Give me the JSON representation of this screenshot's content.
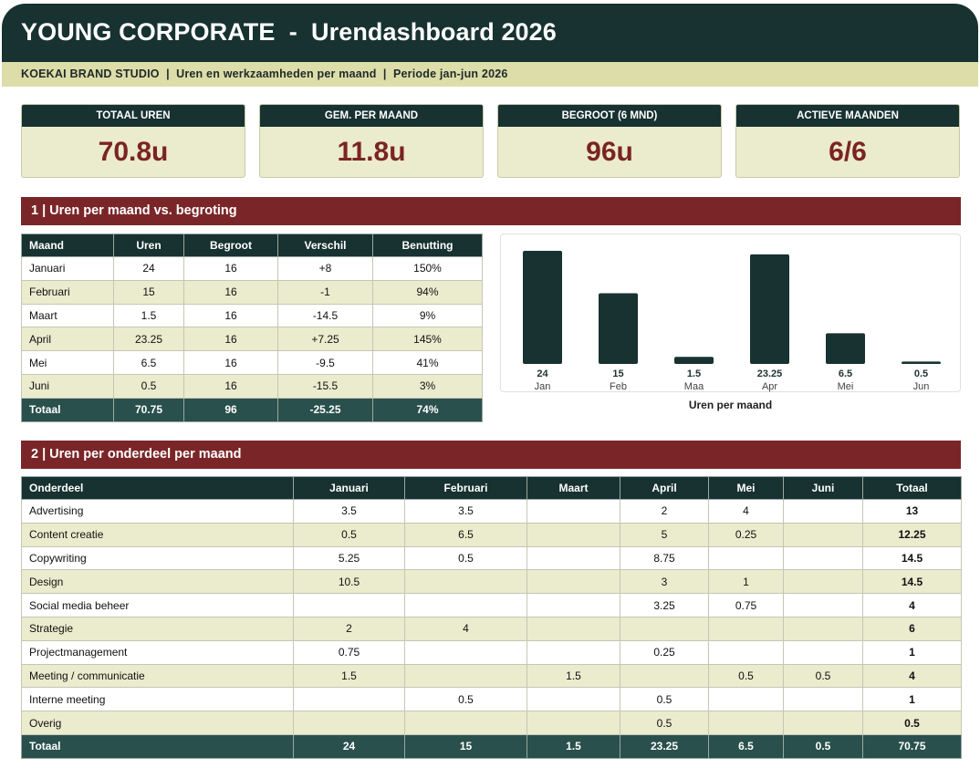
{
  "header": {
    "title": "YOUNG CORPORATE  -  Urendashboard 2026",
    "subtitle": "KOEKAI BRAND STUDIO  |  Uren en werkzaamheden per maand  |  Periode jan-jun 2026"
  },
  "kpis": [
    {
      "label": "TOTAAL UREN",
      "value": "70.8u"
    },
    {
      "label": "GEM. PER MAAND",
      "value": "11.8u"
    },
    {
      "label": "BEGROOT (6 MND)",
      "value": "96u"
    },
    {
      "label": "ACTIEVE MAANDEN",
      "value": "6/6"
    }
  ],
  "section1": {
    "title": "1 | Uren per maand vs. begroting",
    "columns": [
      "Maand",
      "Uren",
      "Begroot",
      "Verschil",
      "Benutting"
    ],
    "rows": [
      [
        "Januari",
        "24",
        "16",
        "+8",
        "150%"
      ],
      [
        "Februari",
        "15",
        "16",
        "-1",
        "94%"
      ],
      [
        "Maart",
        "1.5",
        "16",
        "-14.5",
        "9%"
      ],
      [
        "April",
        "23.25",
        "16",
        "+7.25",
        "145%"
      ],
      [
        "Mei",
        "6.5",
        "16",
        "-9.5",
        "41%"
      ],
      [
        "Juni",
        "0.5",
        "16",
        "-15.5",
        "3%"
      ]
    ],
    "total": [
      "Totaal",
      "70.75",
      "96",
      "-25.25",
      "74%"
    ]
  },
  "chart_data": {
    "type": "bar",
    "categories": [
      "Jan",
      "Feb",
      "Maa",
      "Apr",
      "Mei",
      "Jun"
    ],
    "values": [
      24,
      15,
      1.5,
      23.25,
      6.5,
      0.5
    ],
    "value_labels": [
      "24",
      "15",
      "1.5",
      "23.25",
      "6.5",
      "0.5"
    ],
    "title": "",
    "xlabel": "Uren per maand",
    "ylabel": "",
    "ylim": [
      0,
      24
    ],
    "grid": false,
    "bar_color": "#173230"
  },
  "section2": {
    "title": "2 | Uren per onderdeel per maand",
    "columns": [
      "Onderdeel",
      "Januari",
      "Februari",
      "Maart",
      "April",
      "Mei",
      "Juni",
      "Totaal"
    ],
    "rows": [
      [
        "Advertising",
        "3.5",
        "3.5",
        "",
        "2",
        "4",
        "",
        "13"
      ],
      [
        "Content creatie",
        "0.5",
        "6.5",
        "",
        "5",
        "0.25",
        "",
        "12.25"
      ],
      [
        "Copywriting",
        "5.25",
        "0.5",
        "",
        "8.75",
        "",
        "",
        "14.5"
      ],
      [
        "Design",
        "10.5",
        "",
        "",
        "3",
        "1",
        "",
        "14.5"
      ],
      [
        "Social media beheer",
        "",
        "",
        "",
        "3.25",
        "0.75",
        "",
        "4"
      ],
      [
        "Strategie",
        "2",
        "4",
        "",
        "",
        "",
        "",
        "6"
      ],
      [
        "Projectmanagement",
        "0.75",
        "",
        "",
        "0.25",
        "",
        "",
        "1"
      ],
      [
        "Meeting / communicatie",
        "1.5",
        "",
        "1.5",
        "",
        "0.5",
        "0.5",
        "4"
      ],
      [
        "Interne meeting",
        "",
        "0.5",
        "",
        "0.5",
        "",
        "",
        "1"
      ],
      [
        "Overig",
        "",
        "",
        "",
        "0.5",
        "",
        "",
        "0.5"
      ]
    ],
    "total": [
      "Totaal",
      "24",
      "15",
      "1.5",
      "23.25",
      "6.5",
      "0.5",
      "70.75"
    ]
  },
  "colors": {
    "header_bg": "#173230",
    "accent_red": "#7a2628",
    "kpi_value": "#7a2424",
    "band": "#ebebce",
    "subbar": "#ddddaa"
  }
}
